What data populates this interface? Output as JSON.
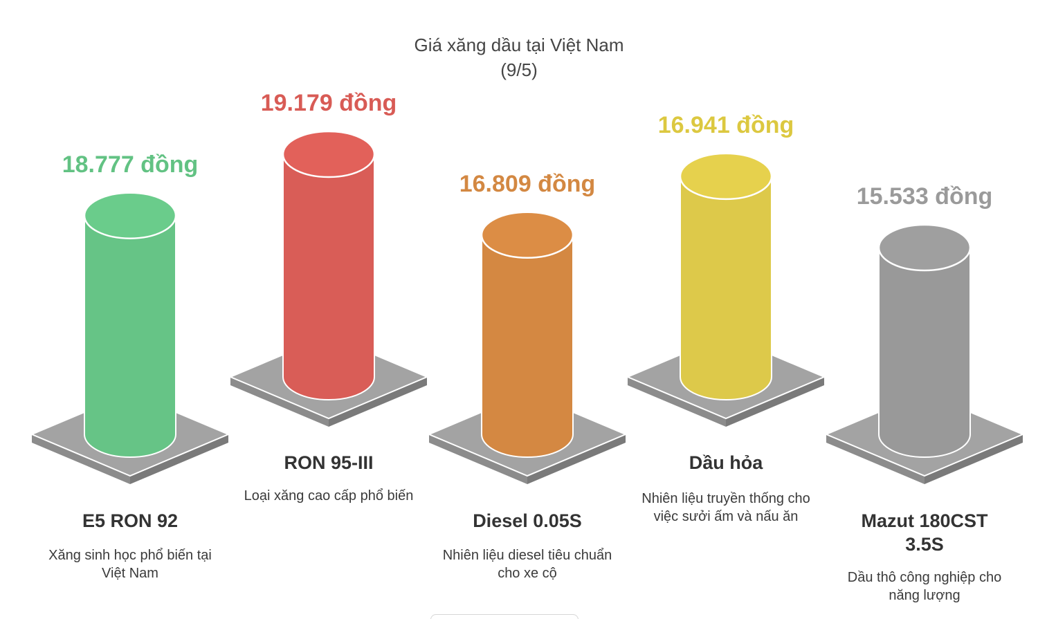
{
  "chart_data": {
    "type": "bar",
    "title": "Giá xăng dầu tại Việt Nam",
    "subtitle": "(9/5)",
    "categories": [
      "E5 RON 92",
      "RON 95-III",
      "Diesel 0.05S",
      "Dầu hỏa",
      "Mazut 180CST 3.5S"
    ],
    "values": [
      18777,
      19179,
      16809,
      16941,
      15533
    ],
    "value_labels": [
      "18.777 đồng",
      "19.179 đồng",
      "16.809 đồng",
      "16.941 đồng",
      "15.533 đồng"
    ],
    "category_labels": [
      "E5 RON 92",
      "RON 95-III",
      "Diesel 0.05S",
      "Dầu hỏa",
      "Mazut 180CST\n3.5S"
    ],
    "descriptions": [
      "Xăng sinh học phổ biến tại Việt Nam",
      "Loại xăng cao cấp phổ biến",
      "Nhiên liệu diesel tiêu chuẩn cho xe cộ",
      "Nhiên liệu truyền thống cho việc sưởi ấm và nấu ăn",
      "Dầu thô công nghiệp cho năng lượng"
    ],
    "colors": [
      "#66c486",
      "#d95d57",
      "#d48842",
      "#ddc94a",
      "#999999"
    ],
    "label_colors": [
      "#62c283",
      "#d85b55",
      "#d38842",
      "#dcc840",
      "#9a9a9a"
    ]
  }
}
